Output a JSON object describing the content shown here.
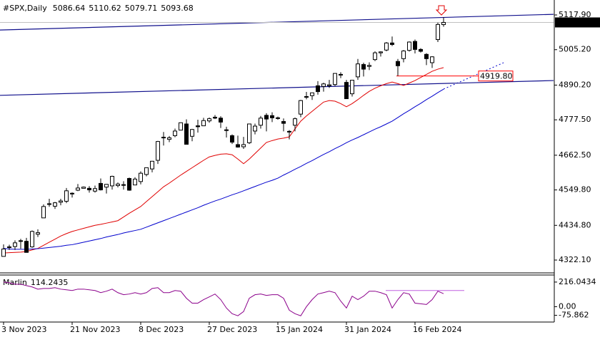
{
  "chart_data": {
    "type": "candlestick",
    "title": "#SPX,Daily",
    "categories": [
      "3 Nov 2023",
      null,
      null,
      null,
      null,
      null,
      null,
      null,
      null,
      null,
      null,
      null,
      "21 Nov 2023",
      null,
      null,
      null,
      null,
      null,
      null,
      null,
      null,
      null,
      null,
      null,
      "8 Dec 2023",
      null,
      null,
      null,
      null,
      null,
      null,
      null,
      null,
      null,
      null,
      null,
      "27 Dec 2023",
      null,
      null,
      null,
      null,
      null,
      null,
      null,
      null,
      null,
      null,
      null,
      "15 Jan 2024",
      null,
      null,
      null,
      null,
      null,
      null,
      null,
      null,
      null,
      null,
      null,
      "31 Jan 2024",
      null,
      null,
      null,
      null,
      null,
      null,
      null,
      null,
      null,
      null,
      null,
      "16 Feb 2024",
      null,
      null,
      null,
      null,
      null
    ],
    "open": [
      4334,
      4364,
      4366,
      4385,
      4383,
      4365,
      4406,
      4459,
      4505,
      4497,
      4510,
      4513,
      4539,
      4549,
      4555,
      4555,
      4546,
      4571,
      4559,
      4563,
      4564,
      4566,
      4587,
      4566,
      4577,
      4600,
      4618,
      4646,
      4721,
      4714,
      4726,
      4744,
      4764,
      4724,
      4758,
      4758,
      4774,
      4786,
      4783,
      4745,
      4726,
      4697,
      4690,
      4703,
      4741,
      4760,
      4792,
      4791,
      4784,
      4772,
      4740,
      4760,
      4796,
      4853,
      4856,
      4888,
      4886,
      4888,
      4892,
      4925,
      4899,
      4862,
      4917,
      4957,
      4951,
      4973,
      4995,
      5004,
      5027,
      4967,
      4976,
      5003,
      5032,
      5006,
      4990,
      4963,
      5038,
      5086.64
    ],
    "high": [
      4373,
      4372,
      4386,
      4391,
      4394,
      4418,
      4422,
      4503,
      4521,
      4511,
      4521,
      4556,
      4542,
      4569,
      4561,
      4562,
      4564,
      4587,
      4569,
      4596,
      4574,
      4578,
      4590,
      4591,
      4610,
      4623,
      4644,
      4709,
      4738,
      4725,
      4749,
      4769,
      4779,
      4748,
      4778,
      4784,
      4785,
      4793,
      4789,
      4755,
      4730,
      4726,
      4722,
      4764,
      4765,
      4790,
      4799,
      4802,
      4788,
      4782,
      4744,
      4785,
      4842,
      4868,
      4866,
      4903,
      4898,
      4907,
      4929,
      4932,
      4907,
      4906,
      4975,
      4963,
      4964,
      5000,
      5000,
      5030,
      5048,
      4975,
      5004,
      5032,
      5038,
      5010,
      4994,
      4984,
      5093,
      5110.62
    ],
    "low": [
      4334,
      4355,
      4355,
      4359,
      4346,
      4362,
      4397,
      4459,
      4495,
      4488,
      4500,
      4507,
      4525,
      4546,
      4554,
      4541,
      4541,
      4548,
      4538,
      4551,
      4558,
      4551,
      4547,
      4566,
      4568,
      4594,
      4607,
      4634,
      4694,
      4705,
      4721,
      4744,
      4698,
      4708,
      4736,
      4758,
      4768,
      4780,
      4751,
      4720,
      4699,
      4687,
      4683,
      4699,
      4730,
      4749,
      4740,
      4770,
      4778,
      4740,
      4714,
      4740,
      4786,
      4844,
      4842,
      4859,
      4869,
      4881,
      4887,
      4913,
      4845,
      4853,
      4907,
      4918,
      4939,
      4968,
      4983,
      5000,
      5017,
      4920,
      4964,
      4999,
      4993,
      4996,
      4955,
      4946,
      5030,
      5079.71
    ],
    "close": [
      4358,
      4365,
      4378,
      4383,
      4347,
      4415,
      4411,
      4496,
      4503,
      4508,
      4514,
      4547,
      4538,
      4556,
      4559,
      4550,
      4554,
      4550,
      4568,
      4594,
      4569,
      4567,
      4549,
      4585,
      4604,
      4622,
      4643,
      4707,
      4719,
      4719,
      4741,
      4768,
      4698,
      4746,
      4755,
      4775,
      4781,
      4783,
      4770,
      4743,
      4705,
      4689,
      4697,
      4764,
      4757,
      4783,
      4780,
      4784,
      4782,
      4766,
      4739,
      4781,
      4840,
      4851,
      4865,
      4869,
      4894,
      4891,
      4928,
      4925,
      4846,
      4906,
      4959,
      4942,
      4954,
      4995,
      4998,
      5027,
      5022,
      4953,
      5001,
      5030,
      5006,
      5000,
      4976,
      4982,
      5087,
      5093.68
    ],
    "moving_averages": [
      {
        "color": "#e00000",
        "values": [
          4345,
          4346,
          4347,
          4348,
          4350,
          4355,
          4360,
          4370,
          4380,
          4390,
          4400,
          4408,
          4415,
          4420,
          4425,
          4430,
          4435,
          4438,
          4442,
          4446,
          4450,
          4462,
          4474,
          4485,
          4496,
          4512,
          4528,
          4544,
          4560,
          4572,
          4585,
          4598,
          4610,
          4622,
          4634,
          4646,
          4657,
          4662,
          4666,
          4667,
          4664,
          4650,
          4635,
          4650,
          4668,
          4686,
          4704,
          4710,
          4715,
          4718,
          4722,
          4748,
          4773,
          4790,
          4805,
          4820,
          4835,
          4840,
          4838,
          4830,
          4820,
          4830,
          4843,
          4857,
          4870,
          4880,
          4888,
          4895,
          4900,
          4895,
          4889,
          4897,
          4905,
          4915,
          4925,
          4935,
          4942,
          4947
        ]
      },
      {
        "color": "#0000cd",
        "values": [
          4360,
          4358,
          4357,
          4357,
          4357,
          4358,
          4359,
          4361,
          4363,
          4365,
          4367,
          4370,
          4372,
          4376,
          4380,
          4384,
          4388,
          4392,
          4397,
          4401,
          4405,
          4410,
          4414,
          4418,
          4422,
          4429,
          4436,
          4443,
          4450,
          4457,
          4464,
          4471,
          4478,
          4485,
          4492,
          4500,
          4507,
          4514,
          4520,
          4527,
          4534,
          4540,
          4547,
          4554,
          4561,
          4568,
          4575,
          4581,
          4588,
          4598,
          4607,
          4617,
          4626,
          4636,
          4645,
          4655,
          4665,
          4674,
          4684,
          4693,
          4703,
          4712,
          4720,
          4729,
          4738,
          4747,
          4755,
          4764,
          4773,
          4785,
          4797,
          4808,
          4820,
          4831,
          4843,
          4854,
          4866,
          4877
        ]
      }
    ],
    "channel_lines": [
      {
        "color": "#10108c",
        "values": [
          5069,
          5120
        ]
      },
      {
        "color": "#10108c",
        "values": [
          4857,
          4905
        ]
      }
    ],
    "level": {
      "value": 4919.8,
      "label": "4919.80",
      "color": "#ff0000"
    },
    "ylim": [
      4282.8,
      5166.5
    ],
    "yticks": [
      {
        "value": 5117.9,
        "label": "5117.90"
      },
      {
        "value": 5005.2,
        "label": "5005.20"
      },
      {
        "value": 4890.2,
        "label": "4890.20"
      },
      {
        "value": 4777.5,
        "label": "4777.50"
      },
      {
        "value": 4662.5,
        "label": "4662.50"
      },
      {
        "value": 4549.8,
        "label": "4549.80"
      },
      {
        "value": 4434.8,
        "label": "4434.80"
      },
      {
        "value": 4322.1,
        "label": "4322.10"
      }
    ],
    "indicator": {
      "name": "Marlin",
      "color": "#8b008b",
      "level": 142,
      "level_color": "#c060e0",
      "values": [
        216,
        210,
        197,
        197,
        185,
        173,
        154,
        160,
        160,
        167,
        154,
        148,
        142,
        154,
        154,
        148,
        142,
        123,
        136,
        154,
        123,
        105,
        111,
        123,
        111,
        123,
        160,
        167,
        123,
        123,
        142,
        136,
        74,
        31,
        31,
        62,
        86,
        111,
        62,
        -12,
        -62,
        -80,
        -43,
        74,
        105,
        111,
        99,
        105,
        105,
        74,
        -31,
        -62,
        -80,
        0,
        62,
        111,
        123,
        136,
        123,
        49,
        -12,
        92,
        62,
        92,
        136,
        136,
        123,
        105,
        -12,
        62,
        123,
        111,
        31,
        25,
        19,
        62,
        136,
        114.2435
      ],
      "ylim": [
        -135,
        278
      ],
      "yticks": [
        216.0434,
        {
          "value": 0,
          "label": "0.00"
        },
        -75.862
      ]
    }
  }
}
